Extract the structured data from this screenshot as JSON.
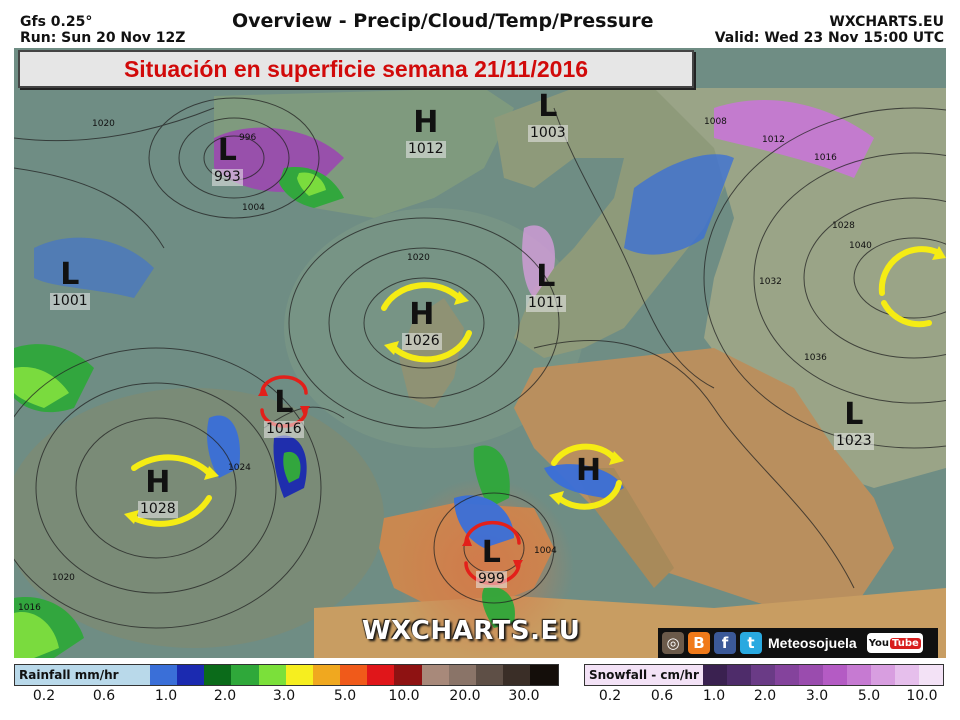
{
  "header": {
    "model": "Gfs 0.25°",
    "run": "Run: Sun 20 Nov 12Z",
    "title": "Overview - Precip/Cloud/Temp/Pressure",
    "site": "WXCHARTS.EU",
    "valid": "Valid: Wed 23 Nov 15:00 UTC"
  },
  "banner": {
    "text": "Situación en superficie semana 21/11/2016"
  },
  "pressure_systems": [
    {
      "type": "L",
      "value": "993"
    },
    {
      "type": "H",
      "value": "1012"
    },
    {
      "type": "L",
      "value": "1003"
    },
    {
      "type": "L",
      "value": "1001"
    },
    {
      "type": "H",
      "value": "1026"
    },
    {
      "type": "L",
      "value": "1011"
    },
    {
      "type": "L",
      "value": "1016"
    },
    {
      "type": "H",
      "value": "1028"
    },
    {
      "type": "H",
      "value": ""
    },
    {
      "type": "L",
      "value": "999"
    },
    {
      "type": "L",
      "value": "1023"
    }
  ],
  "isobar_labels": [
    "1020",
    "996",
    "1004",
    "1008",
    "1012",
    "1016",
    "1028",
    "1032",
    "1036",
    "1040",
    "1024",
    "1020",
    "1016",
    "1004",
    "1020"
  ],
  "watermark": "WXCHARTS.EU",
  "social": {
    "brand": "Meteosojuela",
    "icons": [
      "instagram-icon",
      "blogger-icon",
      "facebook-icon",
      "twitter-icon",
      "youtube-icon"
    ],
    "youtube_you": "You",
    "youtube_tube": "Tube"
  },
  "rain_legend": {
    "title": "Rainfall mm/hr",
    "ticks": [
      "0.2",
      "0.6",
      "1.0",
      "2.0",
      "3.0",
      "5.0",
      "10.0",
      "20.0",
      "30.0"
    ],
    "colors": [
      "#b9d9ea",
      "#3a6fd8",
      "#1b2ab0",
      "#0b6b1a",
      "#2fa83a",
      "#7be03a",
      "#f6ee1f",
      "#f0a81f",
      "#f05a1a",
      "#e0161a",
      "#8e1212",
      "#a8897a",
      "#8a7468",
      "#5e4f46",
      "#3a2e27",
      "#140e0a"
    ]
  },
  "snow_legend": {
    "title": "Snowfall - cm/hr",
    "ticks": [
      "0.2",
      "0.6",
      "1.0",
      "2.0",
      "3.0",
      "5.0",
      "10.0"
    ],
    "colors": [
      "#3a2150",
      "#4e2c6a",
      "#6a3b86",
      "#84439c",
      "#9a4cae",
      "#b45bc4",
      "#c67ad2",
      "#d89ee0",
      "#e6bfec",
      "#f3e2f6"
    ]
  },
  "colors": {
    "ocean": "#6f8d84",
    "land_warm": "#c79a5c",
    "land_cool": "#98a485",
    "arrow_yellow": "#f5ec14",
    "arrow_red": "#e3201a",
    "banner_text": "#d10a0a"
  }
}
